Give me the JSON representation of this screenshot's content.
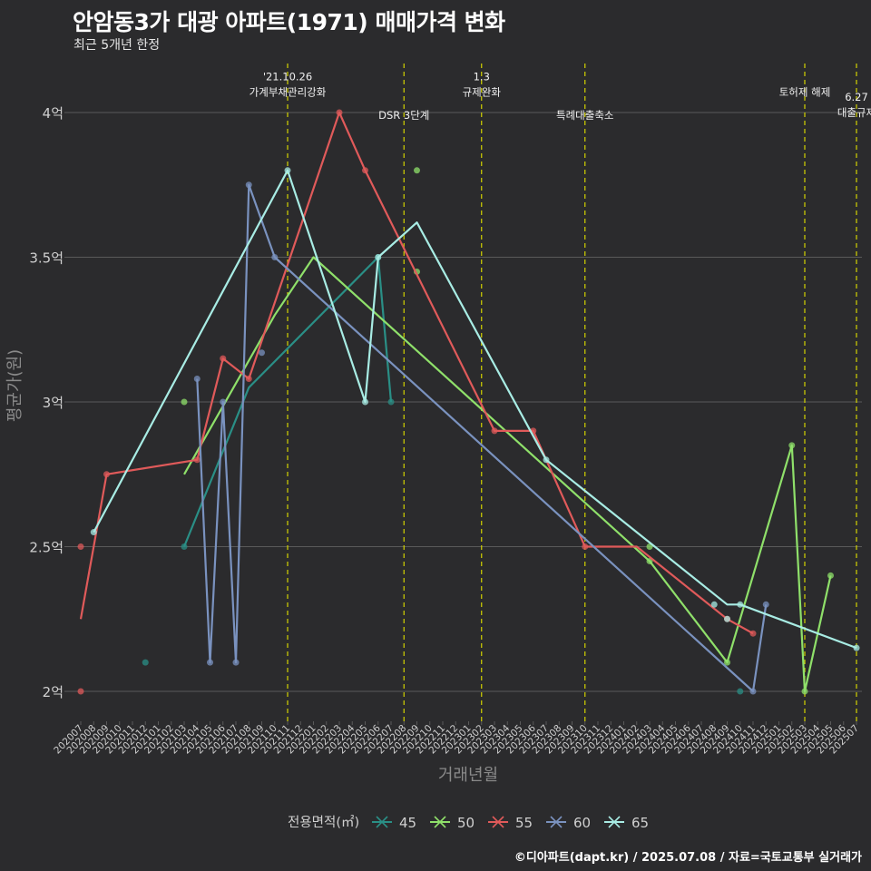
{
  "title": "안암동3가 대광 아파트(1971) 매매가격 변화",
  "subtitle": "최근 5개년 한정",
  "caption": "©디아파트(dapt.kr) / 2025.07.08 / 자료=국토교통부 실거래가",
  "colors": {
    "background": "#2b2b2d",
    "grid": "#5a5a5a",
    "vline": "#d4d400",
    "axis_text": "#d0d0d0",
    "axis_title": "#8a8a8a",
    "s45": "#2a8f86",
    "s50": "#8fe06a",
    "s55": "#e05a5a",
    "s60": "#7a92bf",
    "s65": "#a8ece4"
  },
  "chart_data": {
    "type": "line",
    "title": "안암동3가 대광 아파트(1971) 매매가격 변화",
    "xlabel": "거래년월",
    "ylabel": "평균가(원)",
    "ylim": [
      1.9,
      4.15
    ],
    "yticks": [
      {
        "value": 2.0,
        "label": "2억"
      },
      {
        "value": 2.5,
        "label": "2.5억"
      },
      {
        "value": 3.0,
        "label": "3억"
      },
      {
        "value": 3.5,
        "label": "3.5억"
      },
      {
        "value": 4.0,
        "label": "4억"
      }
    ],
    "x_start_year": 2020,
    "x_start_month": 7,
    "x_end_year": 2025,
    "x_end_month": 7,
    "legend": {
      "title": "전용면적(㎡)",
      "position": "bottom"
    },
    "events": [
      {
        "month": 16,
        "lines": [
          "'21.10.26",
          "가계부채관리강화"
        ],
        "label_value": 4.07
      },
      {
        "month": 25,
        "lines": [
          "DSR 3단계"
        ],
        "label_value": 3.99
      },
      {
        "month": 31,
        "lines": [
          "1.3",
          "규제완화"
        ],
        "label_value": 4.07
      },
      {
        "month": 39,
        "lines": [
          "특례대출축소"
        ],
        "label_value": 3.99
      },
      {
        "month": 56,
        "lines": [
          "토허제 해제"
        ],
        "label_value": 4.07
      },
      {
        "month": 60,
        "lines": [
          "6.27",
          "대출규제"
        ],
        "label_value": 4.0
      }
    ],
    "series": [
      {
        "name": "45",
        "color": "#2a8f86",
        "line": [
          [
            8,
            2.5
          ],
          [
            13,
            3.05
          ],
          [
            23,
            3.5
          ],
          [
            24,
            3.0
          ]
        ],
        "points": [
          [
            5,
            2.1
          ],
          [
            8,
            2.5
          ],
          [
            23,
            3.5
          ],
          [
            24,
            3.0
          ],
          [
            51,
            2.0
          ]
        ]
      },
      {
        "name": "50",
        "color": "#8fe06a",
        "line": [
          [
            8,
            2.75
          ],
          [
            15,
            3.3
          ],
          [
            18,
            3.5
          ],
          [
            44,
            2.45
          ],
          [
            50,
            2.1
          ],
          [
            55,
            2.85
          ],
          [
            56,
            2.0
          ],
          [
            58,
            2.4
          ]
        ],
        "points": [
          [
            8,
            3.0
          ],
          [
            26,
            3.8
          ],
          [
            26,
            3.45
          ],
          [
            44,
            2.5
          ],
          [
            44,
            2.45
          ],
          [
            50,
            2.1
          ],
          [
            55,
            2.85
          ],
          [
            56,
            2.0
          ],
          [
            58,
            2.4
          ]
        ]
      },
      {
        "name": "55",
        "color": "#e05a5a",
        "line": [
          [
            0,
            2.25
          ],
          [
            2,
            2.75
          ],
          [
            9,
            2.8
          ],
          [
            11,
            3.15
          ],
          [
            13,
            3.08
          ],
          [
            20,
            4.0
          ],
          [
            22,
            3.8
          ],
          [
            32,
            2.9
          ],
          [
            35,
            2.9
          ],
          [
            39,
            2.5
          ],
          [
            43,
            2.5
          ],
          [
            50,
            2.25
          ],
          [
            52,
            2.2
          ]
        ],
        "points": [
          [
            0,
            2.5
          ],
          [
            0,
            2.0
          ],
          [
            2,
            2.75
          ],
          [
            9,
            2.8
          ],
          [
            11,
            3.15
          ],
          [
            13,
            3.08
          ],
          [
            20,
            4.0
          ],
          [
            22,
            3.8
          ],
          [
            32,
            2.9
          ],
          [
            35,
            2.9
          ],
          [
            39,
            2.5
          ],
          [
            50,
            2.25
          ],
          [
            52,
            2.2
          ]
        ]
      },
      {
        "name": "60",
        "color": "#7a92bf",
        "line": [
          [
            9,
            3.08
          ],
          [
            10,
            2.1
          ],
          [
            11,
            3.0
          ],
          [
            12,
            2.1
          ],
          [
            13,
            3.75
          ],
          [
            15,
            3.5
          ],
          [
            52,
            2.0
          ],
          [
            53,
            2.3
          ]
        ],
        "points": [
          [
            9,
            3.08
          ],
          [
            10,
            2.1
          ],
          [
            11,
            3.0
          ],
          [
            12,
            2.1
          ],
          [
            13,
            3.75
          ],
          [
            14,
            3.17
          ],
          [
            15,
            3.5
          ],
          [
            52,
            2.0
          ],
          [
            53,
            2.3
          ]
        ]
      },
      {
        "name": "65",
        "color": "#a8ece4",
        "line": [
          [
            1,
            2.55
          ],
          [
            16,
            3.8
          ],
          [
            22,
            3.0
          ],
          [
            23,
            3.5
          ],
          [
            26,
            3.62
          ],
          [
            36,
            2.8
          ],
          [
            50,
            2.3
          ],
          [
            51,
            2.3
          ],
          [
            60,
            2.15
          ]
        ],
        "points": [
          [
            1,
            2.55
          ],
          [
            16,
            3.8
          ],
          [
            22,
            3.0
          ],
          [
            23,
            3.5
          ],
          [
            36,
            2.8
          ],
          [
            49,
            2.3
          ],
          [
            50,
            2.25
          ],
          [
            51,
            2.3
          ],
          [
            60,
            2.15
          ]
        ]
      }
    ]
  }
}
